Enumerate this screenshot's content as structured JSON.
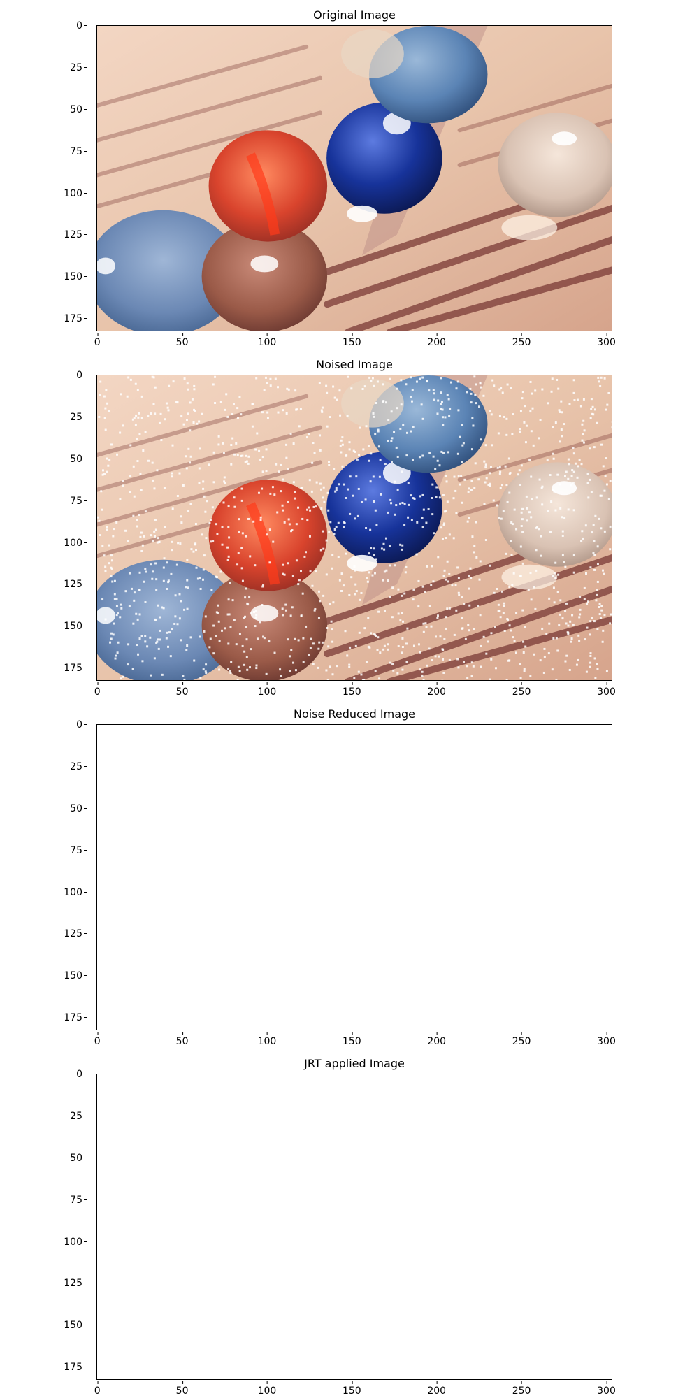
{
  "panels": [
    {
      "title": "Original Image",
      "content": "marbles-photo"
    },
    {
      "title": "Noised Image",
      "content": "marbles-photo-noised"
    },
    {
      "title": "Noise Reduced Image",
      "content": "blank"
    },
    {
      "title": "JRT applied Image",
      "content": "blank"
    }
  ],
  "axes": {
    "y_ticks": [
      "0",
      "25",
      "50",
      "75",
      "100",
      "125",
      "150",
      "175"
    ],
    "x_ticks": [
      "0",
      "50",
      "100",
      "150",
      "200",
      "250",
      "300"
    ],
    "y_range": [
      0,
      183
    ],
    "x_range": [
      0,
      304
    ]
  },
  "colors": {
    "paper": "#e8c4ab",
    "paper_shadow": "#c99c86",
    "text_ink": "#7a3a36",
    "marble_blue_top": "#5b84b5",
    "marble_dark_blue": "#17339a",
    "marble_red": "#d9442d",
    "marble_brown": "#9a5a48",
    "marble_clear": "#d9c2b3",
    "marble_blue_left": "#6b88b4",
    "noise": "#ffffff"
  }
}
